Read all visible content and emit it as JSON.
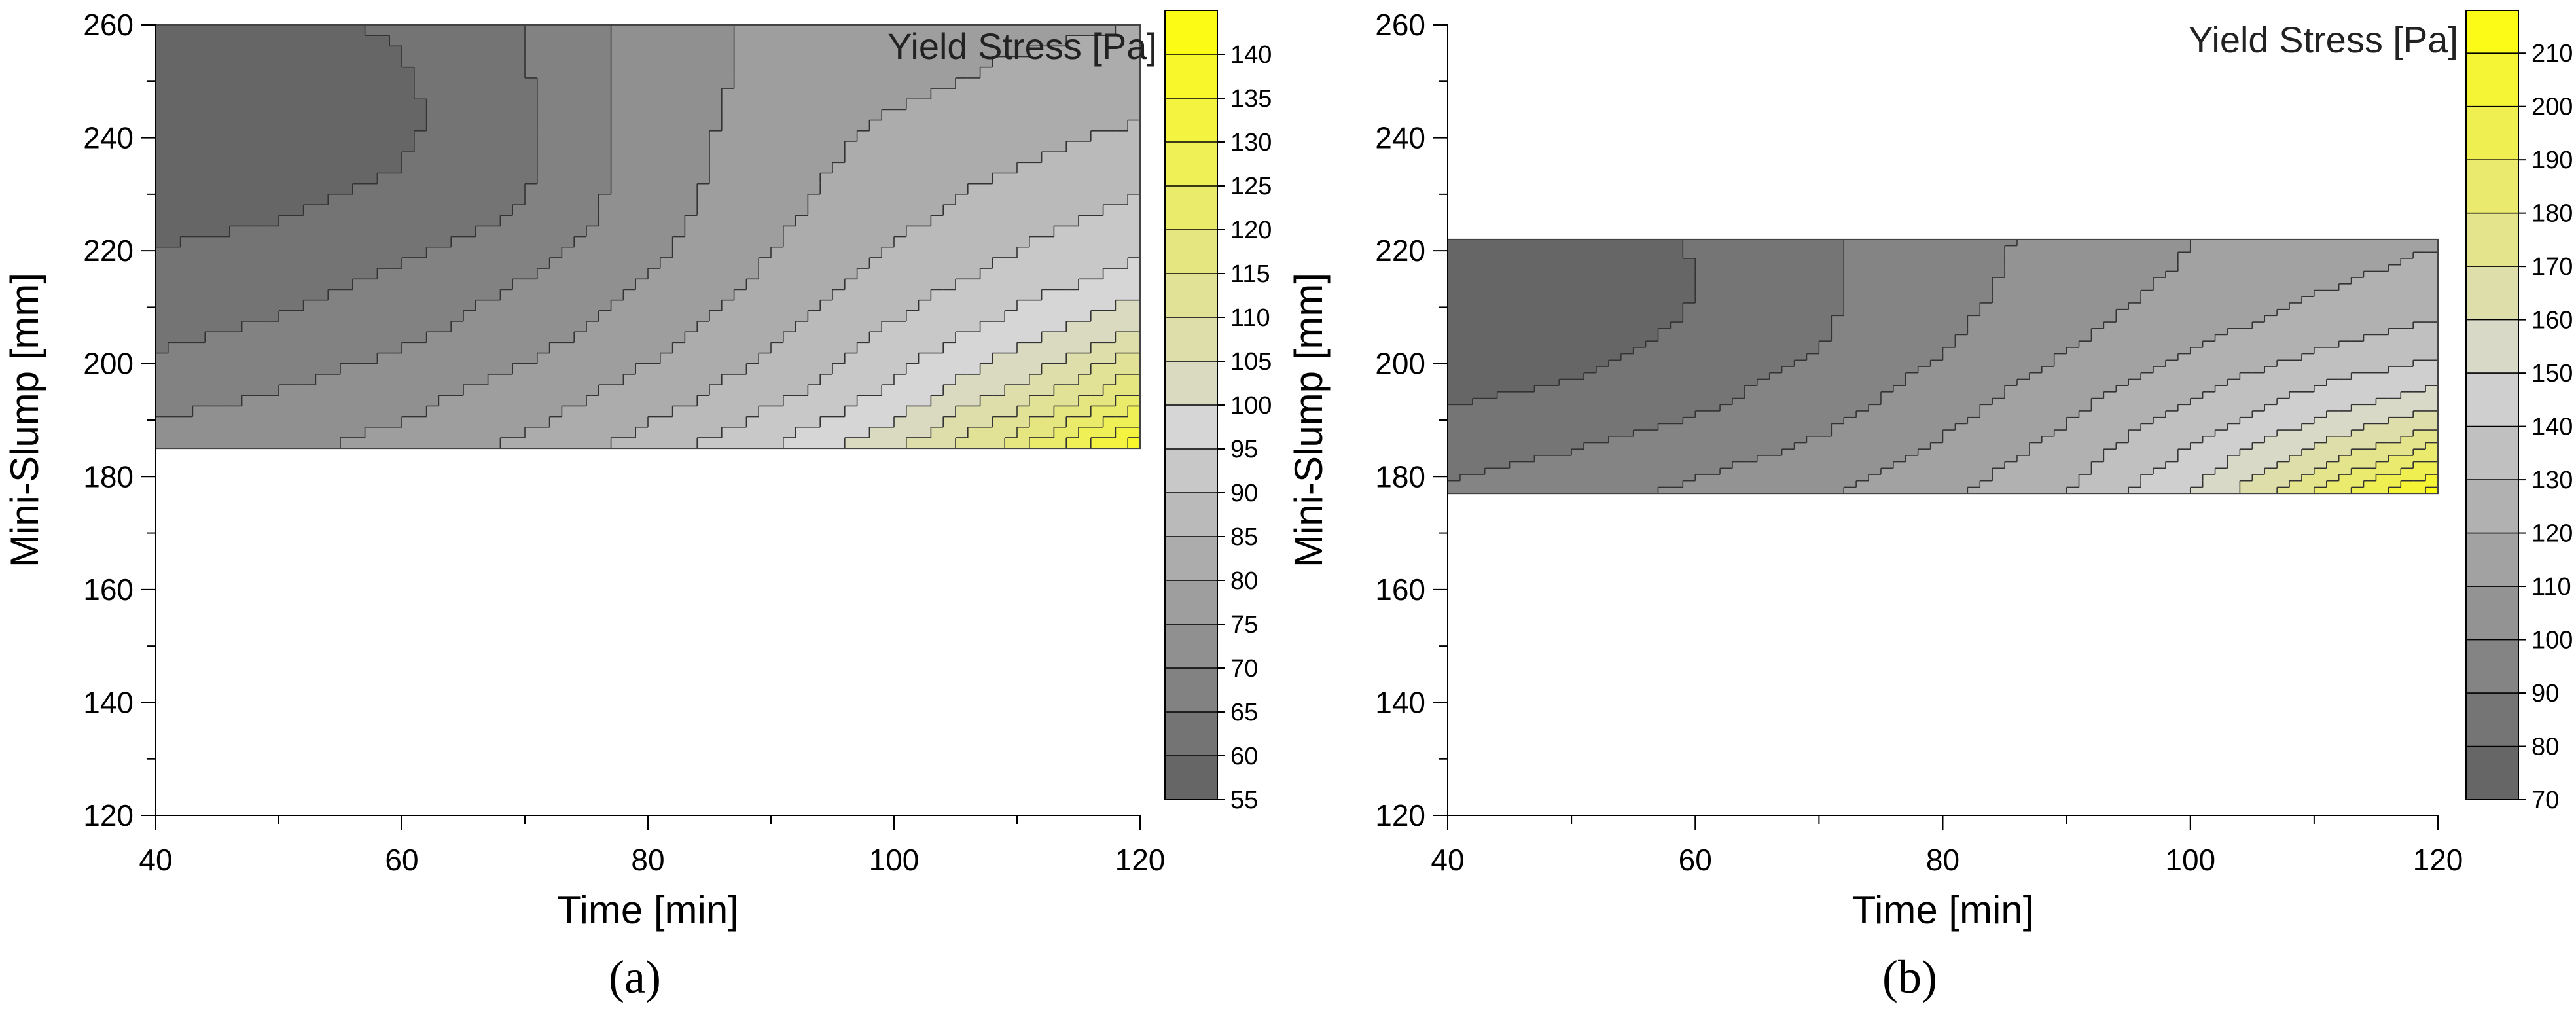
{
  "chart_data": [
    {
      "type": "heatmap",
      "panel_label": "a",
      "title": "",
      "xlabel": "Time [min]",
      "ylabel": "Mini-Slump [mm]",
      "colorbar_title": "Yield Stress [Pa]",
      "xlim": [
        40,
        120
      ],
      "ylim": [
        120,
        260
      ],
      "xticks": [
        40,
        60,
        80,
        100,
        120
      ],
      "yticks": [
        120,
        140,
        160,
        180,
        200,
        220,
        240,
        260
      ],
      "data_region": {
        "x": [
          40,
          120
        ],
        "y": [
          185,
          260
        ]
      },
      "colorbar_levels": [
        55,
        60,
        65,
        70,
        75,
        80,
        85,
        90,
        95,
        100,
        105,
        110,
        115,
        120,
        125,
        130,
        135,
        140
      ],
      "colorbar_range": [
        55,
        145
      ],
      "color_low": "#666666",
      "color_mid": "#d6d6d6",
      "color_high": "#ffff00",
      "color_mid_value": 95,
      "field": {
        "t_grid": [
          40,
          50,
          60,
          70,
          80,
          90,
          100,
          110,
          120
        ],
        "s_grid": [
          185,
          195,
          205,
          215,
          225,
          235,
          245,
          255,
          260
        ],
        "values": [
          [
            72,
            74,
            77,
            81,
            87,
            95,
            104,
            118,
            140
          ],
          [
            68,
            70,
            73,
            77,
            82,
            88,
            96,
            106,
            120
          ],
          [
            64,
            66,
            69,
            73,
            78,
            84,
            91,
            98,
            106
          ],
          [
            61,
            63,
            66,
            70,
            75,
            81,
            87,
            92,
            97
          ],
          [
            59,
            60,
            62,
            66,
            73,
            79,
            84,
            88,
            92
          ],
          [
            58,
            58,
            60,
            64,
            72,
            78,
            82,
            85,
            88
          ],
          [
            57,
            56,
            59,
            64,
            72,
            77,
            80,
            82,
            84
          ],
          [
            58,
            57,
            60,
            65,
            72,
            76,
            78,
            80,
            81
          ],
          [
            59,
            58,
            61,
            65,
            72,
            76,
            78,
            79,
            80
          ]
        ]
      }
    },
    {
      "type": "heatmap",
      "panel_label": "b",
      "title": "",
      "xlabel": "Time [min]",
      "ylabel": "Mini-Slump [mm]",
      "colorbar_title": "Yield Stress [Pa]",
      "xlim": [
        40,
        120
      ],
      "ylim": [
        120,
        260
      ],
      "xticks": [
        40,
        60,
        80,
        100,
        120
      ],
      "yticks": [
        120,
        140,
        160,
        180,
        200,
        220,
        240,
        260
      ],
      "data_region": {
        "x": [
          40,
          120
        ],
        "y": [
          177,
          222
        ]
      },
      "colorbar_levels": [
        70,
        80,
        90,
        100,
        110,
        120,
        130,
        140,
        150,
        160,
        170,
        180,
        190,
        200,
        210
      ],
      "colorbar_range": [
        70,
        218
      ],
      "color_low": "#666666",
      "color_mid": "#d6d6d6",
      "color_high": "#ffff00",
      "color_mid_value": 145,
      "field": {
        "t_grid": [
          40,
          50,
          60,
          70,
          80,
          90,
          100,
          110,
          120
        ],
        "s_grid": [
          177,
          182,
          187,
          192,
          197,
          202,
          207,
          212,
          217,
          222
        ],
        "values": [
          [
            92,
            96,
            102,
            108,
            118,
            130,
            150,
            180,
            215
          ],
          [
            88,
            92,
            98,
            104,
            114,
            126,
            144,
            168,
            195
          ],
          [
            84,
            88,
            93,
            100,
            110,
            122,
            138,
            156,
            175
          ],
          [
            80,
            84,
            89,
            96,
            106,
            118,
            132,
            146,
            160
          ],
          [
            77,
            80,
            86,
            93,
            103,
            114,
            126,
            138,
            148
          ],
          [
            74,
            77,
            83,
            90,
            100,
            110,
            120,
            130,
            138
          ],
          [
            72,
            75,
            81,
            89,
            98,
            107,
            116,
            124,
            131
          ],
          [
            71,
            73,
            80,
            88,
            97,
            105,
            113,
            120,
            126
          ],
          [
            72,
            74,
            80,
            88,
            96,
            104,
            111,
            117,
            122
          ],
          [
            73,
            75,
            81,
            88,
            96,
            103,
            110,
            115,
            119
          ]
        ]
      }
    }
  ],
  "captions": [
    "(a)",
    "(b)"
  ]
}
